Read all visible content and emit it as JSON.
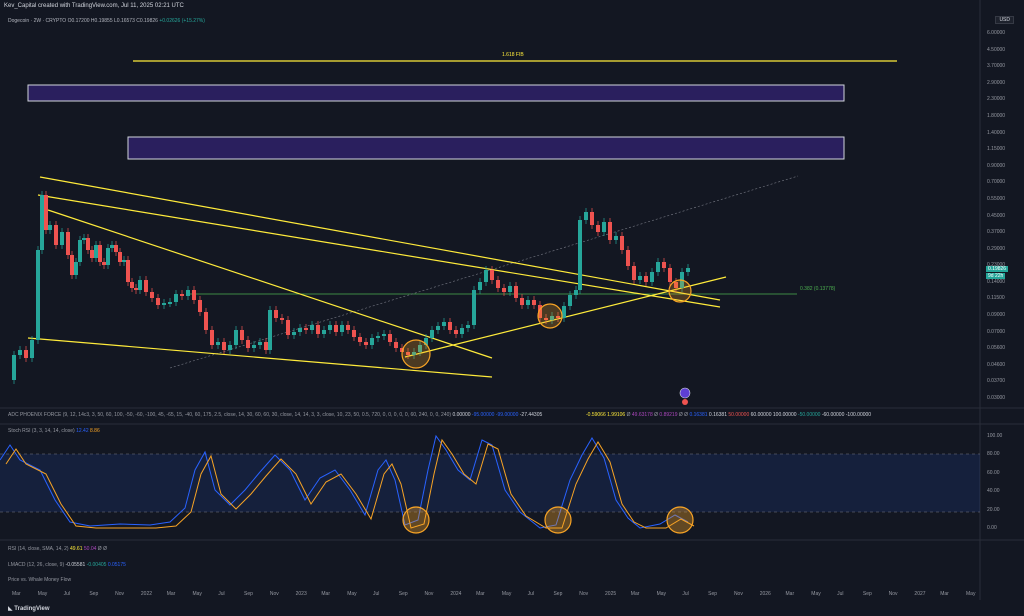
{
  "header": {
    "title": "Kev_Capital created with TradingView.com, Jul 11, 2025 02:21 UTC"
  },
  "symbol": {
    "name": "Dogecoin · 2W · CRYPTO",
    "o": "O0.17200",
    "h": "H0.19855",
    "l": "L0.16573",
    "c": "C0.19826",
    "chg": "+0.02626 (+15.27%)"
  },
  "currency": "USD",
  "price_axis": [
    "6.00000",
    "4.50000",
    "3.70000",
    "2.90000",
    "2.30000",
    "1.80000",
    "1.40000",
    "1.15000",
    "0.90000",
    "0.70000",
    "0.55000",
    "0.45000",
    "0.37000",
    "0.29000",
    "0.23000",
    "0.14000",
    "0.11500",
    "0.09000",
    "0.07000",
    "0.05600",
    "0.04600",
    "0.03700",
    "0.03000"
  ],
  "current_price": {
    "price": "0.19826",
    "countdown": "9d 22h"
  },
  "fib_label": "1.618 FIB",
  "fib382_label": "0.382 (0.13778)",
  "adc_row": {
    "label": "ADC PHOENIX FORCE (9, 12, 14c3, 3, 50, 60, 100, -50, -60, -100, 45, -65, 15, -40, 60, 175, 2.5, close, 14, 30, 60, 60, 30, close, 14, 14, 3, 3, close, 10, 23, 50, 0.5, 720, 0, 0, 0, 0, 0, 60, 240, 0, 0, 240)",
    "v1": "0.00000",
    "v2": "-95.00000",
    "v3": "-99.00000",
    "v4": "-27.44305",
    "v5": "-0.59066",
    "v6": "1.99106",
    "v7": "Ø",
    "v8": "49.63178",
    "v9": "Ø",
    "v10": "0.89219",
    "v11": "Ø",
    "v12": "Ø",
    "v13": "0.16381",
    "v14": "0.16381",
    "v15": "50.00000",
    "v16": "60.00000",
    "v17": "100.00000",
    "v18": "-50.00000",
    "v19": "-60.00000",
    "v20": "-100.00000"
  },
  "stoch_row": {
    "label": "Stoch RSI (3, 3, 14, 14, close)",
    "k": "12.42",
    "d": "8.86"
  },
  "stoch_axis": [
    "100.00",
    "80.00",
    "60.00",
    "40.00",
    "20.00",
    "0.00"
  ],
  "rsi_row": {
    "label": "RSI (14, close, SMA, 14, 2)",
    "v1": "49.61",
    "v2": "50.04",
    "v3": "Ø",
    "v4": "Ø"
  },
  "lmacd_row": {
    "label": "LMACD (12, 26, close, 9)",
    "v1": "-0.05581",
    "v2": "-0.00405",
    "v3": "0.05175"
  },
  "whale_row": {
    "label": "Price vs. Whale Money Flow"
  },
  "time_axis": [
    "Mar",
    "May",
    "Jul",
    "Sep",
    "Nov",
    "2022",
    "Mar",
    "May",
    "Jul",
    "Sep",
    "Nov",
    "2023",
    "Mar",
    "May",
    "Jul",
    "Sep",
    "Nov",
    "2024",
    "Mar",
    "May",
    "Jul",
    "Sep",
    "Nov",
    "2025",
    "Mar",
    "May",
    "Jul",
    "Sep",
    "Nov",
    "2026",
    "Mar",
    "May",
    "Jul",
    "Sep",
    "Nov",
    "2027",
    "Mar",
    "May"
  ],
  "footer": {
    "brand": "TradingView"
  },
  "colors": {
    "background": "#131722",
    "up": "#26a69a",
    "down": "#ef5350",
    "trendline": "#ffeb3b",
    "zone": "#2a1f5e",
    "stoch_k": "#2962ff",
    "stoch_d": "#f7a325"
  }
}
